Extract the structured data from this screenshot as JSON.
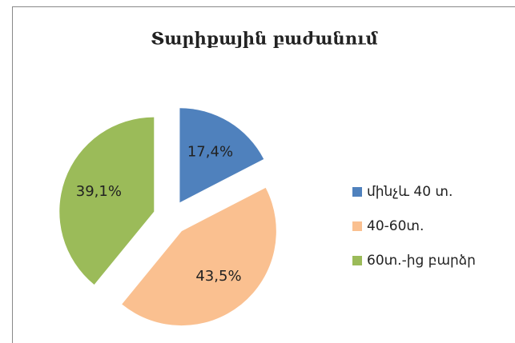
{
  "chart_data": {
    "type": "pie",
    "title": "Տարիքային բաժանում",
    "categories": [
      "մինչև 40 տ.",
      "40-60տ.",
      "60տ.-ից բարձր"
    ],
    "values": [
      17.4,
      43.5,
      39.1
    ],
    "value_labels": [
      "17,4%",
      "43,5%",
      "39,1%"
    ],
    "colors": [
      "#4f81bd",
      "#fac090",
      "#9bbb59"
    ],
    "legend": "right"
  }
}
